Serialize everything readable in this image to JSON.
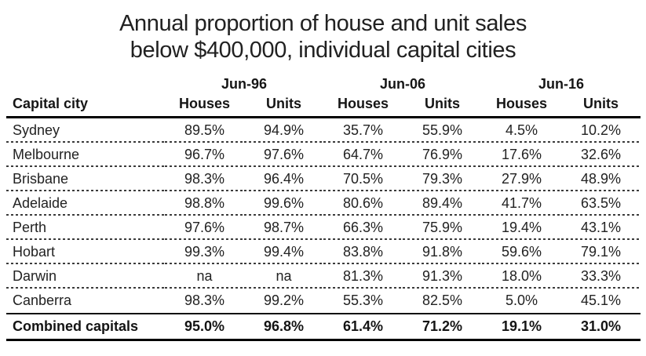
{
  "chart_data": {
    "type": "table",
    "title": "Annual proportion of house and unit sales below $400,000, individual capital cities",
    "title_lines": [
      "Annual proportion of house and unit sales",
      "below $400,000, individual capital cities"
    ],
    "row_label": "Capital city",
    "column_groups": [
      "Jun-96",
      "Jun-06",
      "Jun-16"
    ],
    "sub_headers": [
      "Houses",
      "Units",
      "Houses",
      "Units",
      "Houses",
      "Units"
    ],
    "columns": [
      "Jun-96 Houses",
      "Jun-96 Units",
      "Jun-06 Houses",
      "Jun-06 Units",
      "Jun-16 Houses",
      "Jun-16 Units"
    ],
    "rows": [
      {
        "city": "Sydney",
        "values": [
          "89.5%",
          "94.9%",
          "35.7%",
          "55.9%",
          "4.5%",
          "10.2%"
        ]
      },
      {
        "city": "Melbourne",
        "values": [
          "96.7%",
          "97.6%",
          "64.7%",
          "76.9%",
          "17.6%",
          "32.6%"
        ]
      },
      {
        "city": "Brisbane",
        "values": [
          "98.3%",
          "96.4%",
          "70.5%",
          "79.3%",
          "27.9%",
          "48.9%"
        ]
      },
      {
        "city": "Adelaide",
        "values": [
          "98.8%",
          "99.6%",
          "80.6%",
          "89.4%",
          "41.7%",
          "63.5%"
        ]
      },
      {
        "city": "Perth",
        "values": [
          "97.6%",
          "98.7%",
          "66.3%",
          "75.9%",
          "19.4%",
          "43.1%"
        ]
      },
      {
        "city": "Hobart",
        "values": [
          "99.3%",
          "99.4%",
          "83.8%",
          "91.8%",
          "59.6%",
          "79.1%"
        ]
      },
      {
        "city": "Darwin",
        "values": [
          "na",
          "na",
          "81.3%",
          "91.3%",
          "18.0%",
          "33.3%"
        ]
      },
      {
        "city": "Canberra",
        "values": [
          "98.3%",
          "99.2%",
          "55.3%",
          "82.5%",
          "5.0%",
          "45.1%"
        ]
      },
      {
        "city": "Combined capitals",
        "values": [
          "95.0%",
          "96.8%",
          "61.4%",
          "71.2%",
          "19.1%",
          "31.0%"
        ],
        "total": true
      }
    ]
  },
  "colors": {
    "text": "#1f1f1f",
    "line": "#000000",
    "separator": "#3b3b3b",
    "background": "#ffffff"
  }
}
